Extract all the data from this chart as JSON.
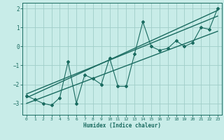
{
  "xlabel": "Humidex (Indice chaleur)",
  "ylabel": "",
  "xlim": [
    -0.5,
    23.5
  ],
  "ylim": [
    -3.6,
    2.3
  ],
  "yticks": [
    -3,
    -2,
    -1,
    0,
    1,
    2
  ],
  "xticks": [
    0,
    1,
    2,
    3,
    4,
    5,
    6,
    7,
    8,
    9,
    10,
    11,
    12,
    13,
    14,
    15,
    16,
    17,
    18,
    19,
    20,
    21,
    22,
    23
  ],
  "bg_color": "#c8ece8",
  "grid_color": "#a0cec8",
  "line_color": "#1a6b60",
  "series1_x": [
    0,
    1,
    2,
    3,
    4,
    5,
    6,
    7,
    8,
    9,
    10,
    11,
    12,
    13,
    14,
    15,
    16,
    17,
    18,
    19,
    20,
    21,
    22,
    23
  ],
  "series1_y": [
    -2.6,
    -2.8,
    -3.0,
    -3.1,
    -2.7,
    -0.8,
    -3.0,
    -1.5,
    -1.7,
    -2.0,
    -0.6,
    -2.1,
    -2.1,
    -0.4,
    1.3,
    0.0,
    -0.2,
    -0.1,
    0.3,
    0.0,
    0.2,
    1.0,
    0.9,
    2.0
  ],
  "trend1_x": [
    0,
    23
  ],
  "trend1_y": [
    -2.7,
    1.9
  ],
  "trend2_x": [
    0,
    23
  ],
  "trend2_y": [
    -2.5,
    1.6
  ],
  "trend3_x": [
    0,
    23
  ],
  "trend3_y": [
    -3.0,
    0.8
  ]
}
